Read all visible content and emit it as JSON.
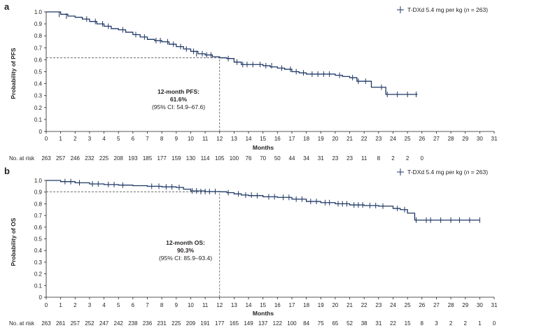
{
  "chart_data": [
    {
      "type": "line",
      "panel_label": "a",
      "ylabel": "Probability of PFS",
      "xlabel": "Months",
      "xlim": [
        0,
        31
      ],
      "ylim": [
        0,
        1.0
      ],
      "x_ticks": [
        0,
        1,
        2,
        3,
        4,
        5,
        6,
        7,
        8,
        9,
        10,
        11,
        12,
        13,
        14,
        15,
        16,
        17,
        18,
        19,
        20,
        21,
        22,
        23,
        24,
        25,
        26,
        27,
        28,
        29,
        30,
        31
      ],
      "y_ticks": [
        "0",
        "0.1",
        "0.2",
        "0.3",
        "0.4",
        "0.5",
        "0.6",
        "0.7",
        "0.8",
        "0.9",
        "1.0"
      ],
      "legend": {
        "prefix": "T-DXd 5.4 mg per kg (",
        "n_label": "n",
        "suffix": " = 263)"
      },
      "annotation": {
        "title": "12-month PFS:",
        "value": "61.6%",
        "ci": "(95% CI: 54.9–67.6)",
        "x": 12,
        "y": 0.616
      },
      "risk_label": "No. at risk",
      "at_risk": [
        "263",
        "257",
        "246",
        "232",
        "225",
        "208",
        "193",
        "185",
        "177",
        "159",
        "130",
        "114",
        "105",
        "100",
        "76",
        "70",
        "50",
        "44",
        "34",
        "31",
        "23",
        "23",
        "11",
        "8",
        "2",
        "2",
        "0"
      ],
      "series": [
        {
          "x": [
            0,
            1.0,
            1.5,
            2.0,
            2.5,
            3.0,
            3.5,
            4.0,
            4.5,
            5.0,
            5.5,
            6.0,
            6.5,
            7.0,
            7.5,
            8.0,
            8.5,
            9.0,
            9.5,
            10.0,
            10.5,
            11.0,
            11.5,
            12.0,
            12.5,
            13.0,
            13.5,
            14.0,
            15.0,
            15.5,
            16.0,
            16.5,
            17.0,
            17.5,
            18.0,
            19.0,
            20.0,
            20.5,
            21.0,
            21.5,
            22.0,
            22.5,
            23.0,
            23.5,
            24.0,
            25.0,
            25.7
          ],
          "y": [
            1.0,
            0.98,
            0.965,
            0.955,
            0.94,
            0.92,
            0.9,
            0.88,
            0.86,
            0.85,
            0.83,
            0.81,
            0.79,
            0.77,
            0.76,
            0.75,
            0.73,
            0.71,
            0.69,
            0.67,
            0.65,
            0.64,
            0.625,
            0.616,
            0.61,
            0.58,
            0.56,
            0.56,
            0.55,
            0.54,
            0.53,
            0.52,
            0.5,
            0.49,
            0.48,
            0.48,
            0.47,
            0.46,
            0.45,
            0.42,
            0.42,
            0.37,
            0.37,
            0.31,
            0.31,
            0.31,
            0.31
          ],
          "censor_x": [
            0.9,
            1.4,
            2.8,
            3.4,
            3.9,
            4.3,
            5.3,
            6.2,
            6.8,
            7.6,
            7.9,
            8.4,
            8.8,
            9.3,
            9.7,
            10.2,
            10.4,
            10.8,
            11.1,
            11.4,
            12.6,
            13.2,
            13.6,
            13.9,
            14.3,
            14.8,
            15.2,
            15.6,
            16.3,
            16.9,
            17.3,
            17.8,
            18.4,
            18.8,
            19.2,
            19.6,
            20.3,
            21.2,
            21.6,
            22.1,
            23.2,
            23.6,
            24.3,
            25.0,
            25.6
          ],
          "censor_y": [
            0.98,
            0.965,
            0.94,
            0.92,
            0.9,
            0.88,
            0.85,
            0.81,
            0.79,
            0.76,
            0.76,
            0.75,
            0.73,
            0.71,
            0.69,
            0.67,
            0.65,
            0.65,
            0.64,
            0.64,
            0.61,
            0.58,
            0.56,
            0.56,
            0.56,
            0.56,
            0.55,
            0.55,
            0.53,
            0.52,
            0.5,
            0.49,
            0.48,
            0.48,
            0.48,
            0.48,
            0.47,
            0.45,
            0.42,
            0.42,
            0.37,
            0.31,
            0.31,
            0.31,
            0.31
          ]
        }
      ]
    },
    {
      "type": "line",
      "panel_label": "b",
      "ylabel": "Probability of OS",
      "xlabel": "Months",
      "xlim": [
        0,
        31
      ],
      "ylim": [
        0,
        1.0
      ],
      "x_ticks": [
        0,
        1,
        2,
        3,
        4,
        5,
        6,
        7,
        8,
        9,
        10,
        11,
        12,
        13,
        14,
        15,
        16,
        17,
        18,
        19,
        20,
        21,
        22,
        23,
        24,
        25,
        26,
        27,
        28,
        29,
        30,
        31
      ],
      "y_ticks": [
        "0",
        "0.1",
        "0.2",
        "0.3",
        "0.4",
        "0.5",
        "0.6",
        "0.7",
        "0.8",
        "0.9",
        "1.0"
      ],
      "legend": {
        "prefix": "T-DXd 5.4 mg per kg (",
        "n_label": "n",
        "suffix": " = 263)"
      },
      "annotation": {
        "title": "12-month OS:",
        "value": "90.3%",
        "ci": "(95% CI: 85.9–93.4)",
        "x": 12,
        "y": 0.903
      },
      "risk_label": "No. at risk",
      "at_risk": [
        "263",
        "261",
        "257",
        "252",
        "247",
        "242",
        "238",
        "236",
        "231",
        "225",
        "209",
        "191",
        "177",
        "165",
        "149",
        "137",
        "122",
        "100",
        "84",
        "75",
        "65",
        "52",
        "38",
        "31",
        "22",
        "15",
        "8",
        "3",
        "2",
        "2",
        "1",
        "0"
      ],
      "series": [
        {
          "x": [
            0,
            1.0,
            2.0,
            3.0,
            4.0,
            5.0,
            6.0,
            7.0,
            8.0,
            9.0,
            9.5,
            10.0,
            11.0,
            12.0,
            12.5,
            13.0,
            13.5,
            14.0,
            15.0,
            16.0,
            17.0,
            18.0,
            19.0,
            20.0,
            21.0,
            22.0,
            23.0,
            24.0,
            24.5,
            25.0,
            25.5,
            26.0,
            27.0,
            28.0,
            29.0,
            30.0
          ],
          "y": [
            1.0,
            0.99,
            0.98,
            0.97,
            0.965,
            0.96,
            0.955,
            0.95,
            0.945,
            0.94,
            0.925,
            0.91,
            0.905,
            0.903,
            0.895,
            0.885,
            0.875,
            0.87,
            0.86,
            0.855,
            0.84,
            0.82,
            0.81,
            0.8,
            0.79,
            0.785,
            0.78,
            0.76,
            0.75,
            0.72,
            0.66,
            0.66,
            0.66,
            0.66,
            0.66,
            0.66
          ],
          "censor_x": [
            1.3,
            1.7,
            2.3,
            3.2,
            3.6,
            4.3,
            4.7,
            5.3,
            7.3,
            7.8,
            8.3,
            8.7,
            9.2,
            10.1,
            10.4,
            10.7,
            11.0,
            11.3,
            11.7,
            12.6,
            13.3,
            13.8,
            14.2,
            14.6,
            15.4,
            15.8,
            16.4,
            16.8,
            17.3,
            17.7,
            18.3,
            18.7,
            19.3,
            19.6,
            20.2,
            20.5,
            20.8,
            21.3,
            21.6,
            21.9,
            22.4,
            22.8,
            23.3,
            24.3,
            24.8,
            25.6,
            26.3,
            26.6,
            27.3,
            28.0,
            28.6,
            29.3,
            30.0
          ],
          "censor_y": [
            0.99,
            0.99,
            0.98,
            0.97,
            0.97,
            0.965,
            0.965,
            0.96,
            0.95,
            0.95,
            0.945,
            0.945,
            0.94,
            0.91,
            0.91,
            0.905,
            0.905,
            0.905,
            0.905,
            0.895,
            0.885,
            0.875,
            0.875,
            0.87,
            0.86,
            0.86,
            0.855,
            0.855,
            0.84,
            0.84,
            0.82,
            0.82,
            0.81,
            0.81,
            0.8,
            0.8,
            0.8,
            0.79,
            0.79,
            0.79,
            0.785,
            0.785,
            0.78,
            0.76,
            0.75,
            0.66,
            0.66,
            0.66,
            0.66,
            0.66,
            0.66,
            0.66,
            0.66
          ]
        }
      ]
    }
  ]
}
